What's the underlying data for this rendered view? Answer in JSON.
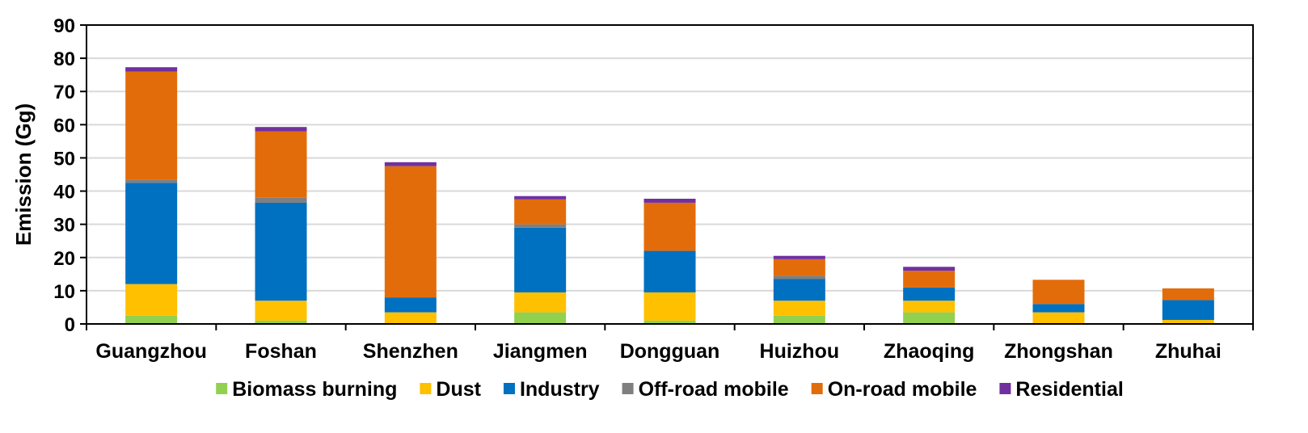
{
  "chart_data": {
    "type": "bar",
    "stacked": true,
    "ylabel": "Emission (Gg)",
    "xlabel": "",
    "ylim": [
      0,
      90
    ],
    "yticks": [
      0,
      10,
      20,
      30,
      40,
      50,
      60,
      70,
      80,
      90
    ],
    "grid": "horizontal",
    "legend_position": "bottom",
    "categories": [
      "Guangzhou",
      "Foshan",
      "Shenzhen",
      "Jiangmen",
      "Dongguan",
      "Huizhou",
      "Zhaoqing",
      "Zhongshan",
      "Zhuhai"
    ],
    "series": [
      {
        "name": "Biomass burning",
        "color": "#92D050",
        "values": [
          2.5,
          1.0,
          0.0,
          3.5,
          1.0,
          2.5,
          3.5,
          0.0,
          0.0
        ]
      },
      {
        "name": "Dust",
        "color": "#FFC000",
        "values": [
          9.5,
          6.0,
          3.5,
          6.0,
          8.5,
          4.5,
          3.5,
          3.5,
          1.2
        ]
      },
      {
        "name": "Industry",
        "color": "#0070C0",
        "values": [
          30.5,
          29.5,
          4.5,
          19.5,
          12.5,
          6.5,
          4.0,
          2.5,
          6.0
        ]
      },
      {
        "name": "Off-road mobile",
        "color": "#7F7F7F",
        "values": [
          1.0,
          1.5,
          0.0,
          1.0,
          0.0,
          1.0,
          0.0,
          0.0,
          0.0
        ]
      },
      {
        "name": "On-road mobile",
        "color": "#E36C0A",
        "values": [
          32.5,
          20.0,
          39.5,
          7.5,
          14.5,
          5.0,
          5.0,
          7.3,
          3.5
        ]
      },
      {
        "name": "Residential",
        "color": "#7030A0",
        "values": [
          1.3,
          1.3,
          1.2,
          1.0,
          1.2,
          1.0,
          1.2,
          0.0,
          0.0
        ]
      }
    ]
  }
}
